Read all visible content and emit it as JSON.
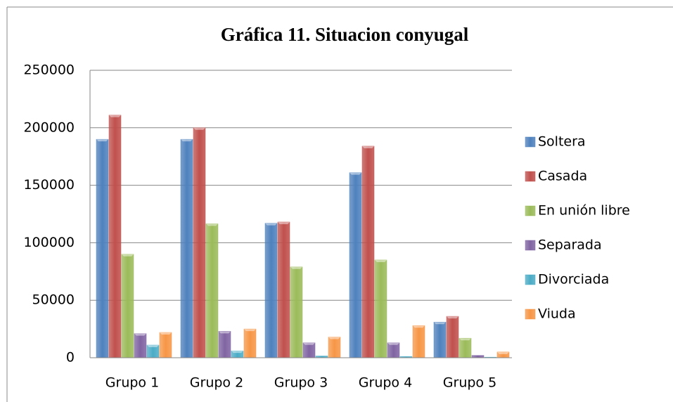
{
  "chart_data": {
    "type": "bar",
    "title": "Gráfica 11. Situacion conyugal",
    "categories": [
      "Grupo 1",
      "Grupo 2",
      "Grupo 3",
      "Grupo 4",
      "Grupo 5"
    ],
    "series": [
      {
        "name": "Soltera",
        "color": "#4f81bd",
        "values": [
          190000,
          190000,
          117000,
          161000,
          31000
        ]
      },
      {
        "name": "Casada",
        "color": "#c0504d",
        "values": [
          211000,
          200000,
          118000,
          184000,
          36000
        ]
      },
      {
        "name": "En unión libre",
        "color": "#9bbb59",
        "values": [
          90000,
          116500,
          79000,
          85000,
          17000
        ]
      },
      {
        "name": "Separada",
        "color": "#8064a2",
        "values": [
          21000,
          23000,
          13000,
          13000,
          2000
        ]
      },
      {
        "name": "Divorciada",
        "color": "#4bacc6",
        "values": [
          11000,
          6000,
          1500,
          1000,
          500
        ]
      },
      {
        "name": "Viuda",
        "color": "#f79646",
        "values": [
          22000,
          25000,
          18000,
          28000,
          5000
        ]
      }
    ],
    "ylim": [
      0,
      250000
    ],
    "yticks": [
      0,
      50000,
      100000,
      150000,
      200000,
      250000
    ],
    "grid": true,
    "legend": "right"
  }
}
